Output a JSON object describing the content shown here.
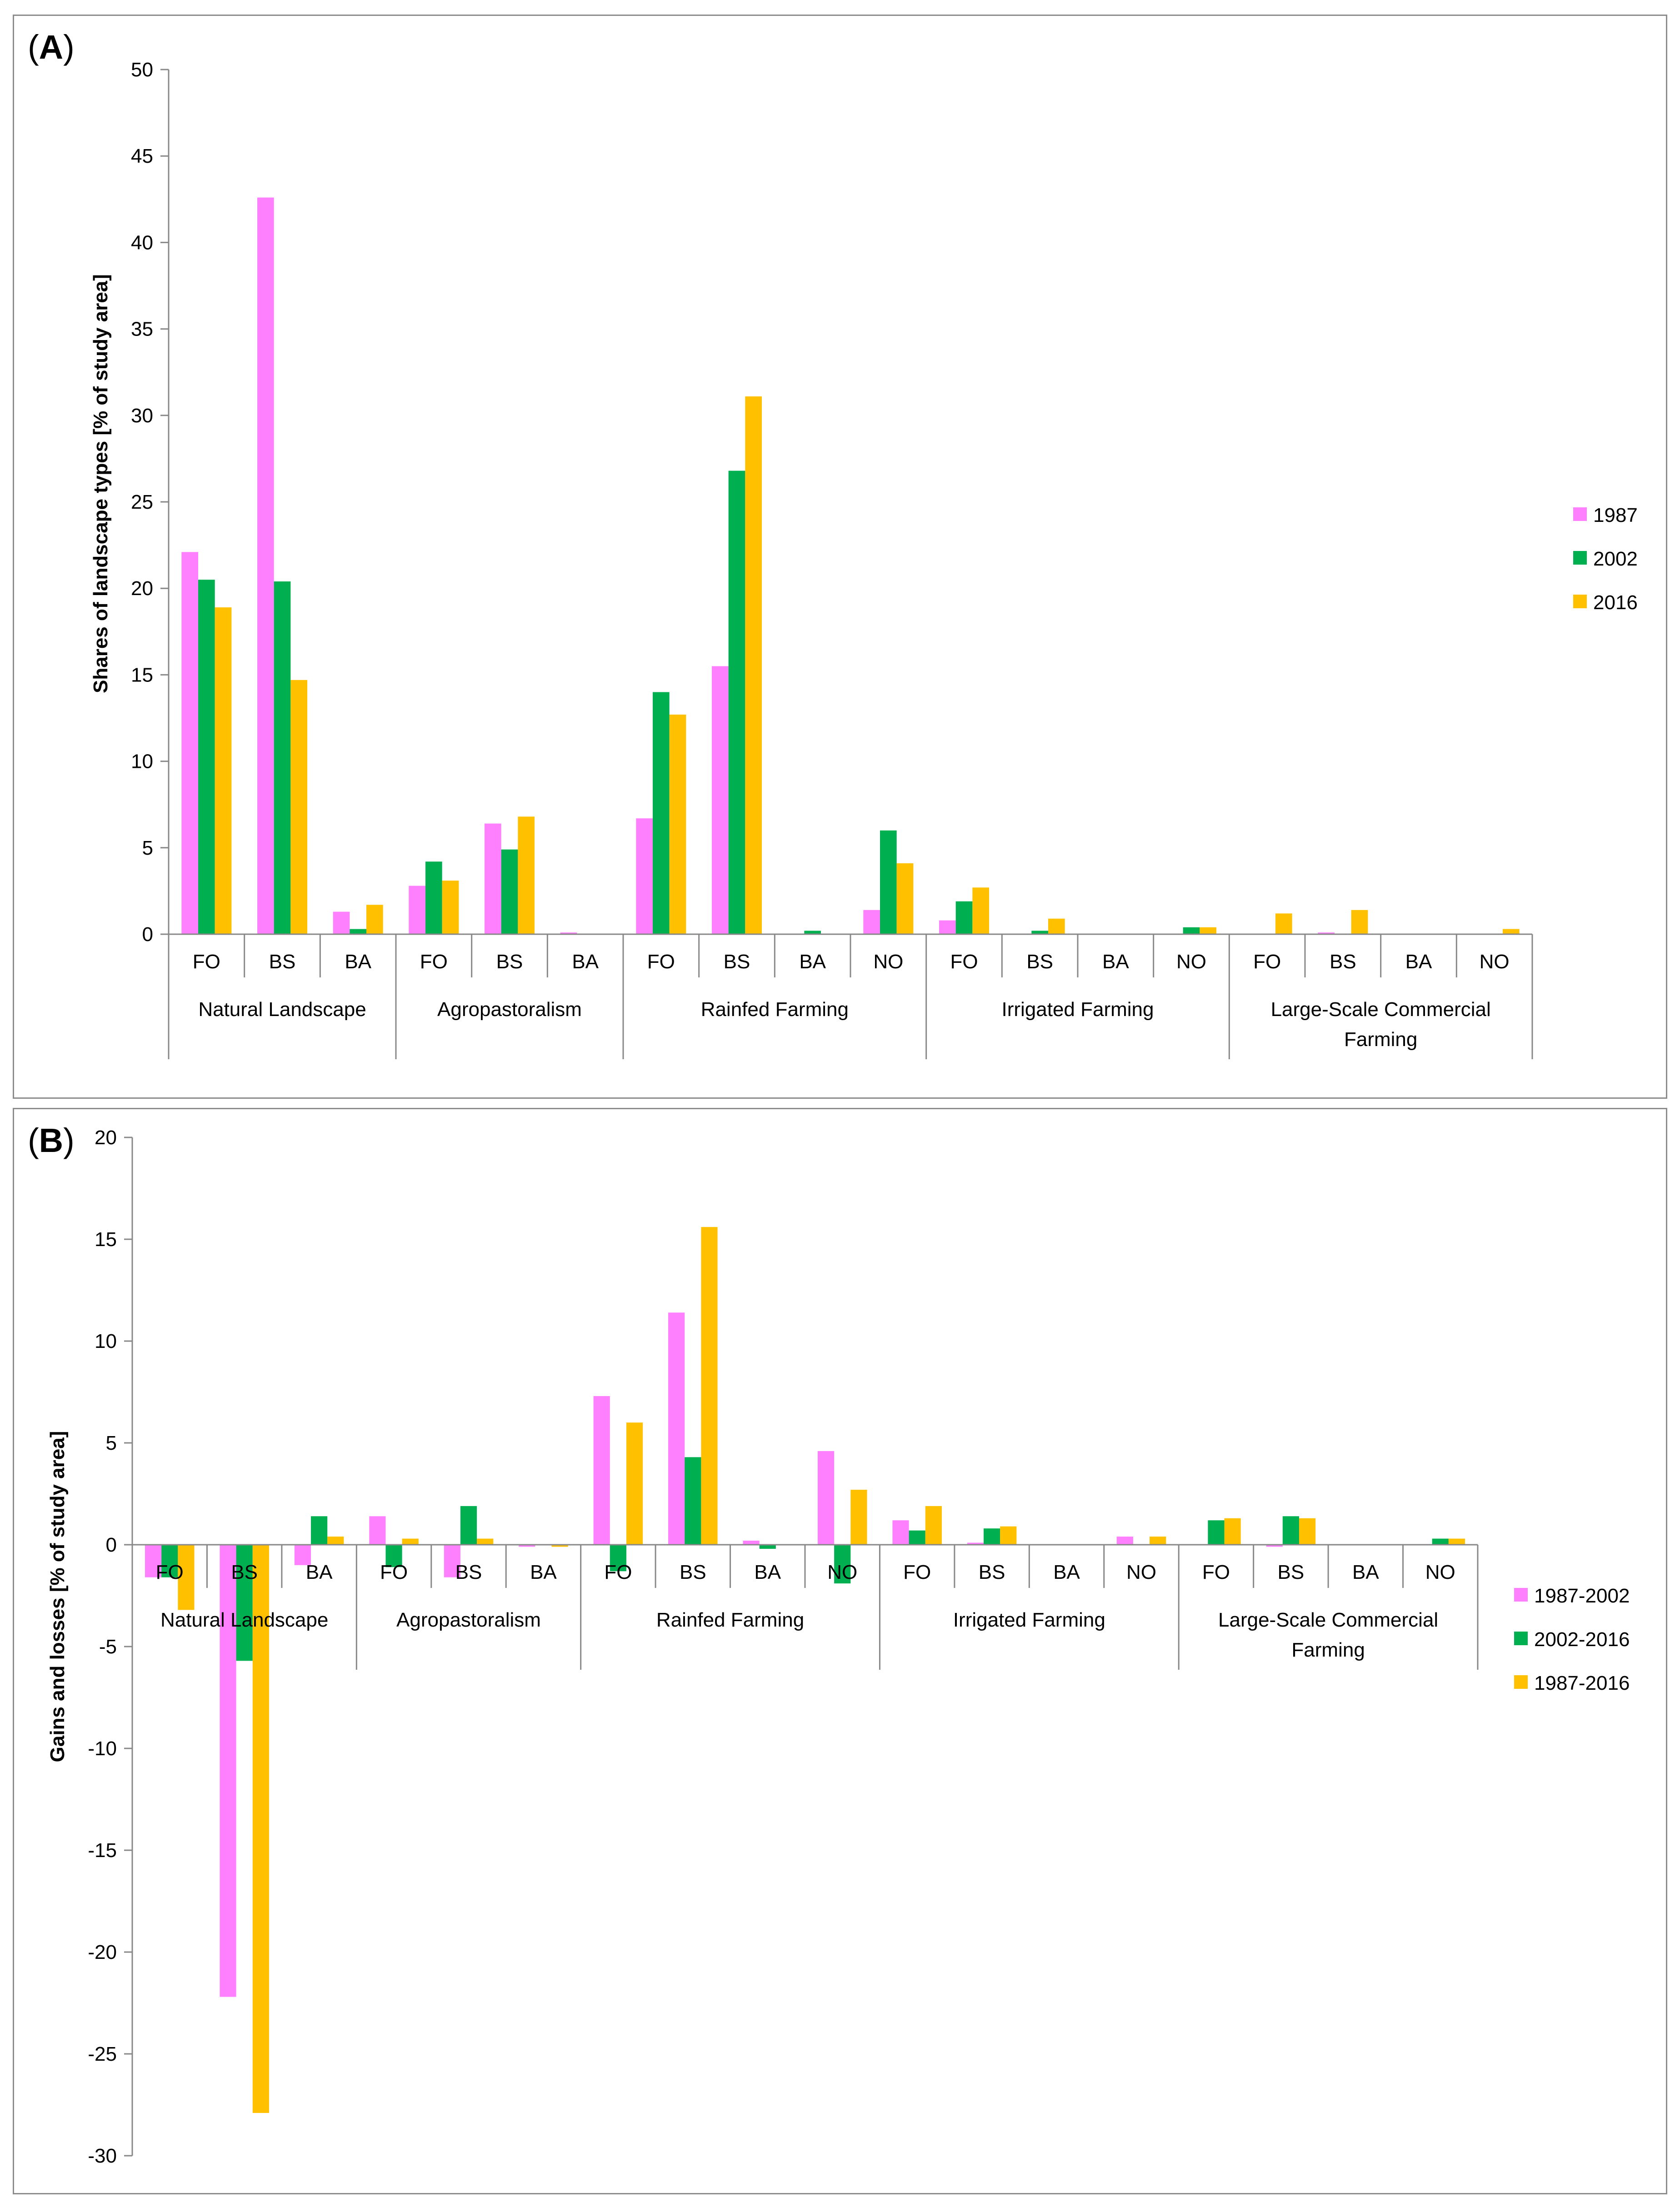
{
  "colors": {
    "series1": "#ff80ff",
    "series2": "#00b050",
    "series3": "#ffc000",
    "axis": "#888888"
  },
  "chart_data": [
    {
      "panel_label": "A",
      "type": "bar",
      "ylabel": "Shares of landscape types [% of study area]",
      "ylim": [
        0,
        50
      ],
      "ytick_step": 5,
      "legend_position": "right",
      "groups": [
        {
          "name": "Natural Landscape",
          "categories": [
            "FO",
            "BS",
            "BA"
          ]
        },
        {
          "name": "Agropastoralism",
          "categories": [
            "FO",
            "BS",
            "BA"
          ]
        },
        {
          "name": "Rainfed Farming",
          "categories": [
            "FO",
            "BS",
            "BA",
            "NO"
          ]
        },
        {
          "name": "Irrigated Farming",
          "categories": [
            "FO",
            "BS",
            "BA",
            "NO"
          ]
        },
        {
          "name": "Large-Scale Commercial Farming",
          "categories": [
            "FO",
            "BS",
            "BA",
            "NO"
          ]
        }
      ],
      "series": [
        {
          "name": "1987",
          "values": [
            22.1,
            42.6,
            1.3,
            2.8,
            6.4,
            0.1,
            6.7,
            15.5,
            0.0,
            1.4,
            0.8,
            0.0,
            0.0,
            0.0,
            0.0,
            0.1,
            0.0,
            0.0
          ]
        },
        {
          "name": "2002",
          "values": [
            20.5,
            20.4,
            0.3,
            4.2,
            4.9,
            0.0,
            14.0,
            26.8,
            0.2,
            6.0,
            1.9,
            0.2,
            0.0,
            0.4,
            0.0,
            0.0,
            0.0,
            0.0
          ]
        },
        {
          "name": "2016",
          "values": [
            18.9,
            14.7,
            1.7,
            3.1,
            6.8,
            0.0,
            12.7,
            31.1,
            0.0,
            4.1,
            2.7,
            0.9,
            0.0,
            0.4,
            1.2,
            1.4,
            0.0,
            0.3
          ]
        }
      ]
    },
    {
      "panel_label": "B",
      "type": "bar",
      "ylabel": "Gains and losses [% of study area]",
      "ylim": [
        -30,
        20
      ],
      "ytick_step": 5,
      "legend_position": "right",
      "groups": [
        {
          "name": "Natural Landscape",
          "categories": [
            "FO",
            "BS",
            "BA"
          ]
        },
        {
          "name": "Agropastoralism",
          "categories": [
            "FO",
            "BS",
            "BA"
          ]
        },
        {
          "name": "Rainfed Farming",
          "categories": [
            "FO",
            "BS",
            "BA",
            "NO"
          ]
        },
        {
          "name": "Irrigated Farming",
          "categories": [
            "FO",
            "BS",
            "BA",
            "NO"
          ]
        },
        {
          "name": "Large-Scale Commercial Farming",
          "categories": [
            "FO",
            "BS",
            "BA",
            "NO"
          ]
        }
      ],
      "series": [
        {
          "name": "1987-2002",
          "values": [
            -1.6,
            -22.2,
            -1.0,
            1.4,
            -1.6,
            -0.1,
            7.3,
            11.4,
            0.2,
            4.6,
            1.2,
            0.1,
            0.0,
            0.4,
            0.0,
            -0.1,
            0.0,
            0.0
          ]
        },
        {
          "name": "2002-2016",
          "values": [
            -1.6,
            -5.7,
            1.4,
            -1.1,
            1.9,
            0.0,
            -1.3,
            4.3,
            -0.2,
            -1.9,
            0.7,
            0.8,
            0.0,
            0.0,
            1.2,
            1.4,
            0.0,
            0.3
          ]
        },
        {
          "name": "1987-2016",
          "values": [
            -3.2,
            -27.9,
            0.4,
            0.3,
            0.3,
            -0.1,
            6.0,
            15.6,
            0.0,
            2.7,
            1.9,
            0.9,
            0.0,
            0.4,
            1.3,
            1.3,
            0.0,
            0.3
          ]
        }
      ]
    }
  ]
}
